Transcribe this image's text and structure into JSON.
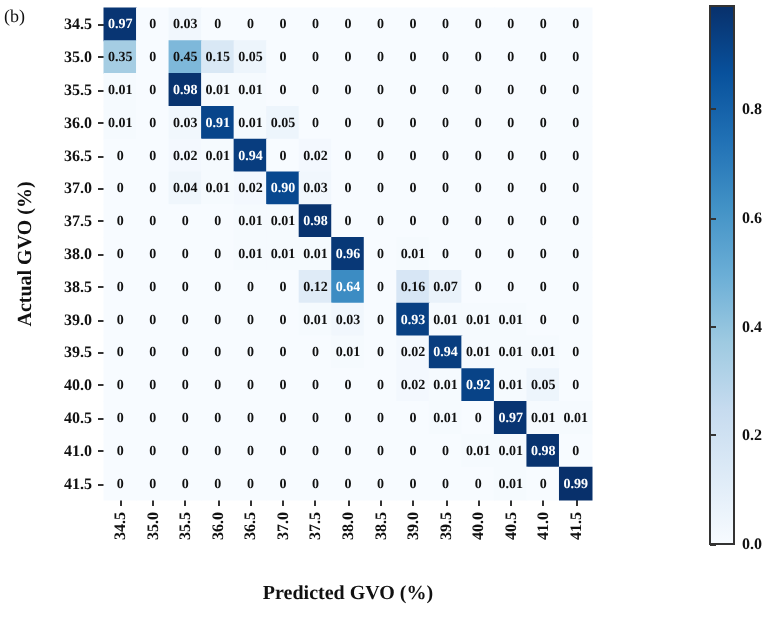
{
  "chart_data": {
    "type": "heatmap",
    "xlabel": "Predicted GVO (%)",
    "ylabel": "Actual GVO (%)",
    "annotations": [
      "(b)"
    ],
    "categories": [
      "34.5",
      "35.0",
      "35.5",
      "36.0",
      "36.5",
      "37.0",
      "37.5",
      "38.0",
      "38.5",
      "39.0",
      "39.5",
      "40.0",
      "40.5",
      "41.0",
      "41.5"
    ],
    "y_categories": [
      "34.5",
      "35.0",
      "35.5",
      "36.0",
      "36.5",
      "37.0",
      "37.5",
      "38.0",
      "38.5",
      "39.0",
      "39.5",
      "40.0",
      "40.5",
      "41.0",
      "41.5"
    ],
    "cells": [
      [
        0.97,
        0,
        0.03,
        0,
        0,
        0,
        0,
        0,
        0,
        0,
        0,
        0,
        0,
        0,
        0
      ],
      [
        0.35,
        0,
        0.45,
        0.15,
        0.05,
        0,
        0,
        0,
        0,
        0,
        0,
        0,
        0,
        0,
        0
      ],
      [
        0.01,
        0,
        0.98,
        0.01,
        0.01,
        0,
        0,
        0,
        0,
        0,
        0,
        0,
        0,
        0,
        0
      ],
      [
        0.01,
        0,
        0.03,
        0.91,
        0.01,
        0.05,
        0,
        0,
        0,
        0,
        0,
        0,
        0,
        0,
        0
      ],
      [
        0,
        0,
        0.02,
        0.01,
        0.94,
        0,
        0.02,
        0,
        0,
        0,
        0,
        0,
        0,
        0,
        0
      ],
      [
        0,
        0,
        0.04,
        0.01,
        0.02,
        0.9,
        0.03,
        0,
        0,
        0,
        0,
        0,
        0,
        0,
        0
      ],
      [
        0,
        0,
        0,
        0,
        0.01,
        0.01,
        0.98,
        0,
        0,
        0,
        0,
        0,
        0,
        0,
        0
      ],
      [
        0,
        0,
        0,
        0,
        0.01,
        0.01,
        0.01,
        0.96,
        0,
        0.01,
        0,
        0,
        0,
        0,
        0
      ],
      [
        0,
        0,
        0,
        0,
        0,
        0,
        0.12,
        0.64,
        0,
        0.16,
        0.07,
        0,
        0,
        0,
        0
      ],
      [
        0,
        0,
        0,
        0,
        0,
        0,
        0.01,
        0.03,
        0,
        0.93,
        0.01,
        0.01,
        0.01,
        0,
        0
      ],
      [
        0,
        0,
        0,
        0,
        0,
        0,
        0,
        0.01,
        0,
        0.02,
        0.94,
        0.01,
        0.01,
        0.01,
        0
      ],
      [
        0,
        0,
        0,
        0,
        0,
        0,
        0,
        0,
        0,
        0.02,
        0.01,
        0.92,
        0.01,
        0.05,
        0
      ],
      [
        0,
        0,
        0,
        0,
        0,
        0,
        0,
        0,
        0,
        0,
        0.01,
        0,
        0.97,
        0.01,
        0.01
      ],
      [
        0,
        0,
        0,
        0,
        0,
        0,
        0,
        0,
        0,
        0,
        0,
        0.01,
        0.01,
        0.98,
        0
      ],
      [
        0,
        0,
        0,
        0,
        0,
        0,
        0,
        0,
        0,
        0,
        0,
        0,
        0.01,
        0,
        0.99
      ]
    ],
    "cell_labels": [
      [
        "0.97",
        "0",
        "0.03",
        "0",
        "0",
        "0",
        "0",
        "0",
        "0",
        "0",
        "0",
        "0",
        "0",
        "0",
        "0"
      ],
      [
        "0.35",
        "0",
        "0.45",
        "0.15",
        "0.05",
        "0",
        "0",
        "0",
        "0",
        "0",
        "0",
        "0",
        "0",
        "0",
        "0"
      ],
      [
        "0.01",
        "0",
        "0.98",
        "0.01",
        "0.01",
        "0",
        "0",
        "0",
        "0",
        "0",
        "0",
        "0",
        "0",
        "0",
        "0"
      ],
      [
        "0.01",
        "0",
        "0.03",
        "0.91",
        "0.01",
        "0.05",
        "0",
        "0",
        "0",
        "0",
        "0",
        "0",
        "0",
        "0",
        "0"
      ],
      [
        "0",
        "0",
        "0.02",
        "0.01",
        "0.94",
        "0",
        "0.02",
        "0",
        "0",
        "0",
        "0",
        "0",
        "0",
        "0",
        "0"
      ],
      [
        "0",
        "0",
        "0.04",
        "0.01",
        "0.02",
        "0.90",
        "0.03",
        "0",
        "0",
        "0",
        "0",
        "0",
        "0",
        "0",
        "0"
      ],
      [
        "0",
        "0",
        "0",
        "0",
        "0.01",
        "0.01",
        "0.98",
        "0",
        "0",
        "0",
        "0",
        "0",
        "0",
        "0",
        "0"
      ],
      [
        "0",
        "0",
        "0",
        "0",
        "0.01",
        "0.01",
        "0.01",
        "0.96",
        "0",
        "0.01",
        "0",
        "0",
        "0",
        "0",
        "0"
      ],
      [
        "0",
        "0",
        "0",
        "0",
        "0",
        "0",
        "0.12",
        "0.64",
        "0",
        "0.16",
        "0.07",
        "0",
        "0",
        "0",
        "0"
      ],
      [
        "0",
        "0",
        "0",
        "0",
        "0",
        "0",
        "0.01",
        "0.03",
        "0",
        "0.93",
        "0.01",
        "0.01",
        "0.01",
        "0",
        "0"
      ],
      [
        "0",
        "0",
        "0",
        "0",
        "0",
        "0",
        "0",
        "0.01",
        "0",
        "0.02",
        "0.94",
        "0.01",
        "0.01",
        "0.01",
        "0"
      ],
      [
        "0",
        "0",
        "0",
        "0",
        "0",
        "0",
        "0",
        "0",
        "0",
        "0.02",
        "0.01",
        "0.92",
        "0.01",
        "0.05",
        "0"
      ],
      [
        "0",
        "0",
        "0",
        "0",
        "0",
        "0",
        "0",
        "0",
        "0",
        "0",
        "0.01",
        "0",
        "0.97",
        "0.01",
        "0.01"
      ],
      [
        "0",
        "0",
        "0",
        "0",
        "0",
        "0",
        "0",
        "0",
        "0",
        "0",
        "0",
        "0.01",
        "0.01",
        "0.98",
        "0"
      ],
      [
        "0",
        "0",
        "0",
        "0",
        "0",
        "0",
        "0",
        "0",
        "0",
        "0",
        "0",
        "0",
        "0.01",
        "0",
        "0.99"
      ]
    ],
    "data_labels": true,
    "clim": [
      0,
      0.99
    ],
    "cticks": [
      {
        "value": 0,
        "label": "0.0"
      },
      {
        "value": 0.2,
        "label": "0.2"
      },
      {
        "value": 0.4,
        "label": "0.4"
      },
      {
        "value": 0.6,
        "label": "0.6"
      },
      {
        "value": 0.8,
        "label": "0.8"
      }
    ],
    "colors": [
      "#f7fbff",
      "#deebf7",
      "#c6dbef",
      "#9ecae1",
      "#6baed6",
      "#4292c6",
      "#2171b5",
      "#08519c",
      "#08306b"
    ]
  }
}
